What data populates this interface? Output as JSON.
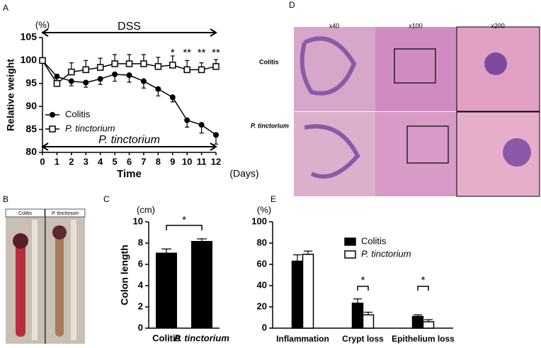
{
  "panels": [
    "A",
    "B",
    "C",
    "D",
    "E"
  ],
  "chart_data": [
    {
      "type": "line",
      "y_label": "Relative weight",
      "y_unit": "(%)",
      "x_label": "Time",
      "x_unit": "(Days)",
      "treatments": [
        "DSS",
        "P. tinctorium"
      ],
      "x": [
        0,
        1,
        2,
        3,
        4,
        5,
        6,
        7,
        8,
        9,
        10,
        11,
        12
      ],
      "xlim": [
        0,
        12
      ],
      "xticks": [
        0,
        1,
        2,
        3,
        4,
        5,
        6,
        7,
        8,
        9,
        10,
        11,
        12
      ],
      "ylim": [
        80,
        105
      ],
      "yticks": [
        80,
        85,
        90,
        95,
        100,
        105
      ],
      "series": [
        {
          "name": "Colitis",
          "color": "#000000",
          "marker": "circle",
          "values": [
            100,
            96.5,
            95.5,
            95.2,
            96,
            97,
            96.8,
            95.5,
            93.8,
            92,
            87,
            86,
            83.8
          ],
          "errors": [
            0,
            1,
            1,
            1,
            1.2,
            1.5,
            1.5,
            1.5,
            1.5,
            1,
            1.5,
            1.8,
            2
          ]
        },
        {
          "name": "P. tinctorium",
          "color": "#000000",
          "marker": "square",
          "values": [
            100,
            95,
            97.5,
            98,
            98.5,
            99.3,
            99.3,
            99.3,
            98.7,
            99,
            98,
            98,
            98.7
          ],
          "errors": [
            0,
            2,
            2,
            2,
            2,
            2,
            2,
            2,
            2,
            2,
            2,
            1.5,
            1.5
          ]
        }
      ],
      "significance": {
        "x": [
          9,
          10,
          11,
          12
        ],
        "labels": [
          "*",
          "**",
          "**",
          "**"
        ]
      }
    },
    {
      "type": "bar",
      "y_label": "Colon length",
      "y_unit": "(cm)",
      "categories": [
        "Colitis",
        "P. tinctorium"
      ],
      "values": [
        7.1,
        8.2
      ],
      "errors": [
        0.35,
        0.2
      ],
      "color": "#000000",
      "ylim": [
        0,
        10
      ],
      "yticks": [
        0,
        2,
        4,
        6,
        8,
        10
      ],
      "significance": "*"
    },
    {
      "type": "grouped_bar",
      "y_unit": "(%)",
      "categories": [
        "Inflammation",
        "Crypt loss",
        "Epithelium loss"
      ],
      "series": [
        {
          "name": "Colitis",
          "color": "#000000",
          "values": [
            63,
            23.5,
            11
          ],
          "errors": [
            6,
            4,
            1.5
          ]
        },
        {
          "name": "P. tinctorium",
          "color": "#ffffff",
          "values": [
            69.5,
            12.5,
            6
          ],
          "errors": [
            3,
            2.5,
            2
          ]
        }
      ],
      "ylim": [
        0,
        100
      ],
      "yticks": [
        0,
        20,
        40,
        60,
        80,
        100
      ],
      "significance_labels": [
        null,
        "*",
        "*"
      ]
    }
  ],
  "photo_B": {
    "labels": [
      "Colitis",
      "P. tinctorium"
    ]
  },
  "photo_D": {
    "columns": [
      "x40",
      "x100",
      "x200"
    ],
    "rows": [
      "Colitis",
      "P. tinctorium"
    ]
  }
}
